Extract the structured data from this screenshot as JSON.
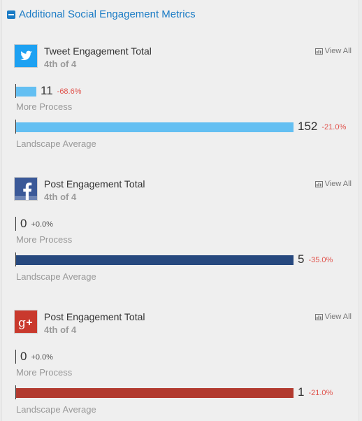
{
  "section": {
    "title": "Additional Social Engagement Metrics",
    "header_color": "#1a7bc5"
  },
  "metrics": [
    {
      "network": "twitter",
      "logo_icon": "twitter-logo-icon",
      "logo_color": "#1da1f2",
      "title": "Tweet Engagement Total",
      "rank": "4th of 4",
      "view_all": "View All",
      "bar_color": "#63bff2",
      "max_value": 152,
      "rows": [
        {
          "label": "More Process",
          "value": 11,
          "value_text": "11",
          "change": "-68.6%",
          "change_color": "#e0524b"
        },
        {
          "label": "Landscape Average",
          "value": 152,
          "value_text": "152",
          "change": "-21.0%",
          "change_color": "#e0524b"
        }
      ]
    },
    {
      "network": "facebook",
      "logo_icon": "facebook-logo-icon",
      "logo_color": "#3b5998",
      "title": "Post Engagement Total",
      "rank": "4th of 4",
      "view_all": "View All",
      "bar_color": "#26487e",
      "max_value": 5,
      "rows": [
        {
          "label": "More Process",
          "value": 0,
          "value_text": "0",
          "change": "+0.0%",
          "change_color": "#555555"
        },
        {
          "label": "Landscape Average",
          "value": 5,
          "value_text": "5",
          "change": "-35.0%",
          "change_color": "#e0524b"
        }
      ]
    },
    {
      "network": "google-plus",
      "logo_icon": "google-plus-logo-icon",
      "logo_color": "#c9392d",
      "title": "Post Engagement Total",
      "rank": "4th of 4",
      "view_all": "View All",
      "bar_color": "#b23a2f",
      "max_value": 1,
      "rows": [
        {
          "label": "More Process",
          "value": 0,
          "value_text": "0",
          "change": "+0.0%",
          "change_color": "#555555"
        },
        {
          "label": "Landscape Average",
          "value": 1,
          "value_text": "1",
          "change": "-21.0%",
          "change_color": "#e0524b"
        }
      ]
    }
  ]
}
